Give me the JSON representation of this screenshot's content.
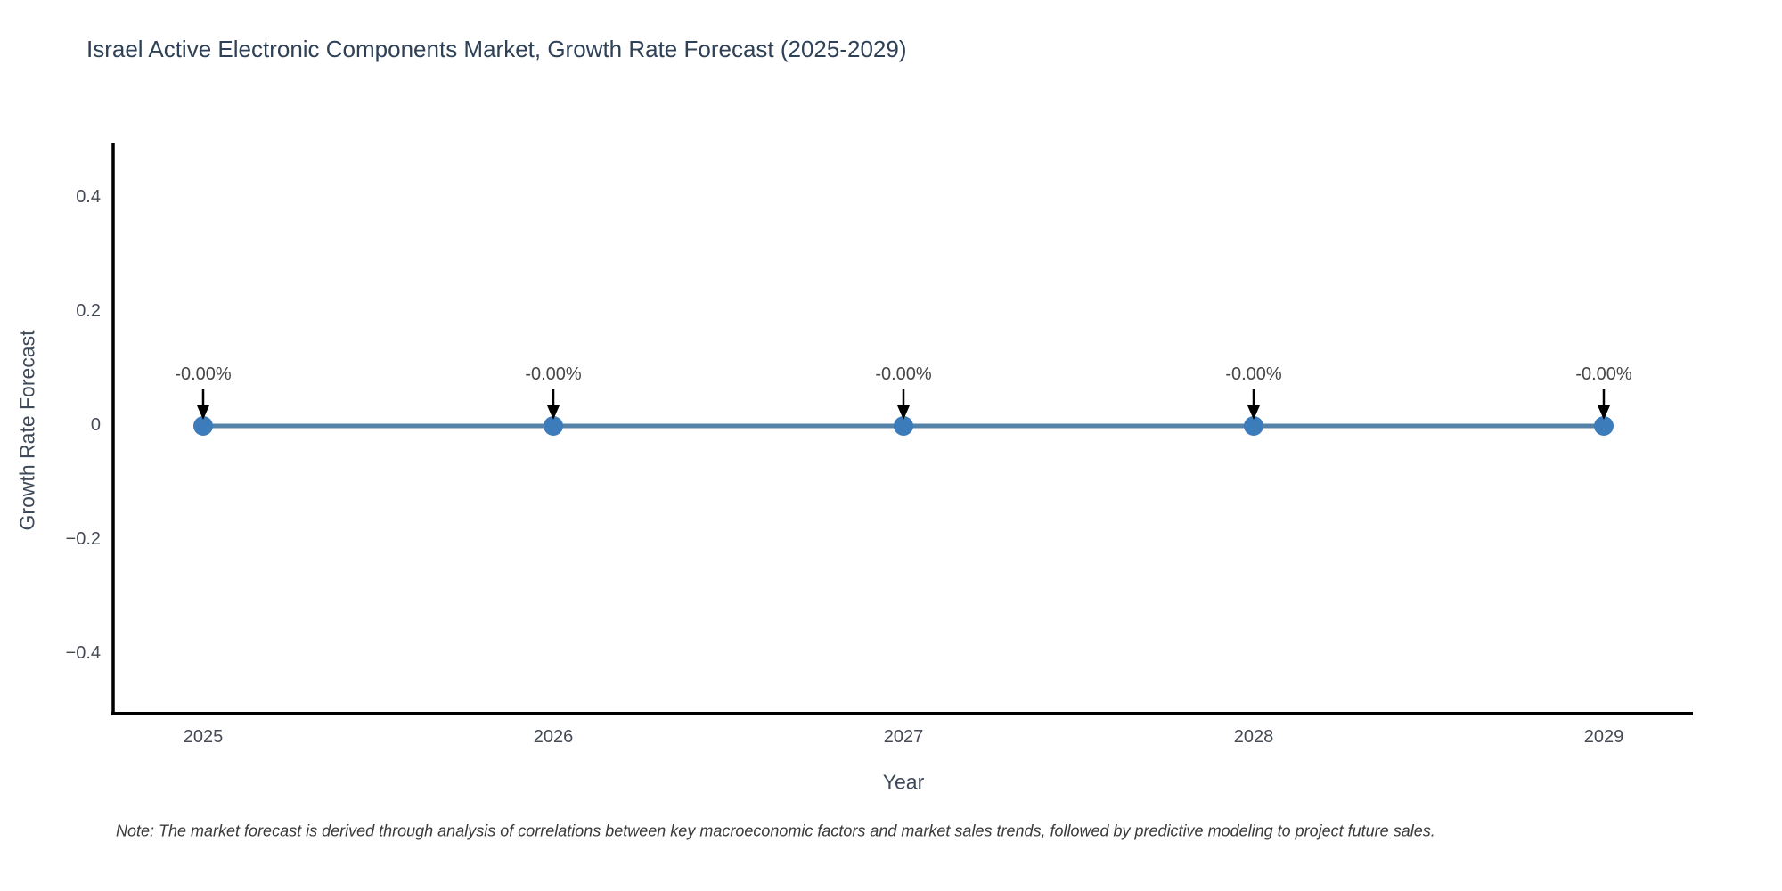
{
  "chart_data": {
    "type": "line",
    "title": "Israel Active Electronic Components Market, Growth Rate Forecast (2025-2029)",
    "xlabel": "Year",
    "ylabel": "Growth Rate Forecast",
    "categories": [
      "2025",
      "2026",
      "2027",
      "2028",
      "2029"
    ],
    "series": [
      {
        "name": "Growth Rate Forecast",
        "values": [
          0,
          0,
          0,
          0,
          0
        ],
        "point_labels": [
          "-0.00%",
          "-0.00%",
          "-0.00%",
          "-0.00%",
          "-0.00%"
        ]
      }
    ],
    "yticks": {
      "values": [
        0.4,
        0.2,
        0,
        -0.2,
        -0.4
      ],
      "labels": [
        "0.4",
        "0.2",
        "0",
        "−0.2",
        "−0.4"
      ]
    },
    "ylim": [
      -0.5,
      0.5
    ],
    "grid": false,
    "legend_position": "none",
    "annotation_style": "value label with downward arrow to each point",
    "colors": {
      "line": "#5582a8",
      "marker": "#3d7cba",
      "axis": "#000000",
      "arrow": "#000000",
      "title": "#2e4156",
      "tick": "#454b54"
    }
  },
  "note": "Note: The market forecast is derived through analysis of correlations between key macroeconomic factors and market sales trends, followed by predictive modeling to project future sales."
}
